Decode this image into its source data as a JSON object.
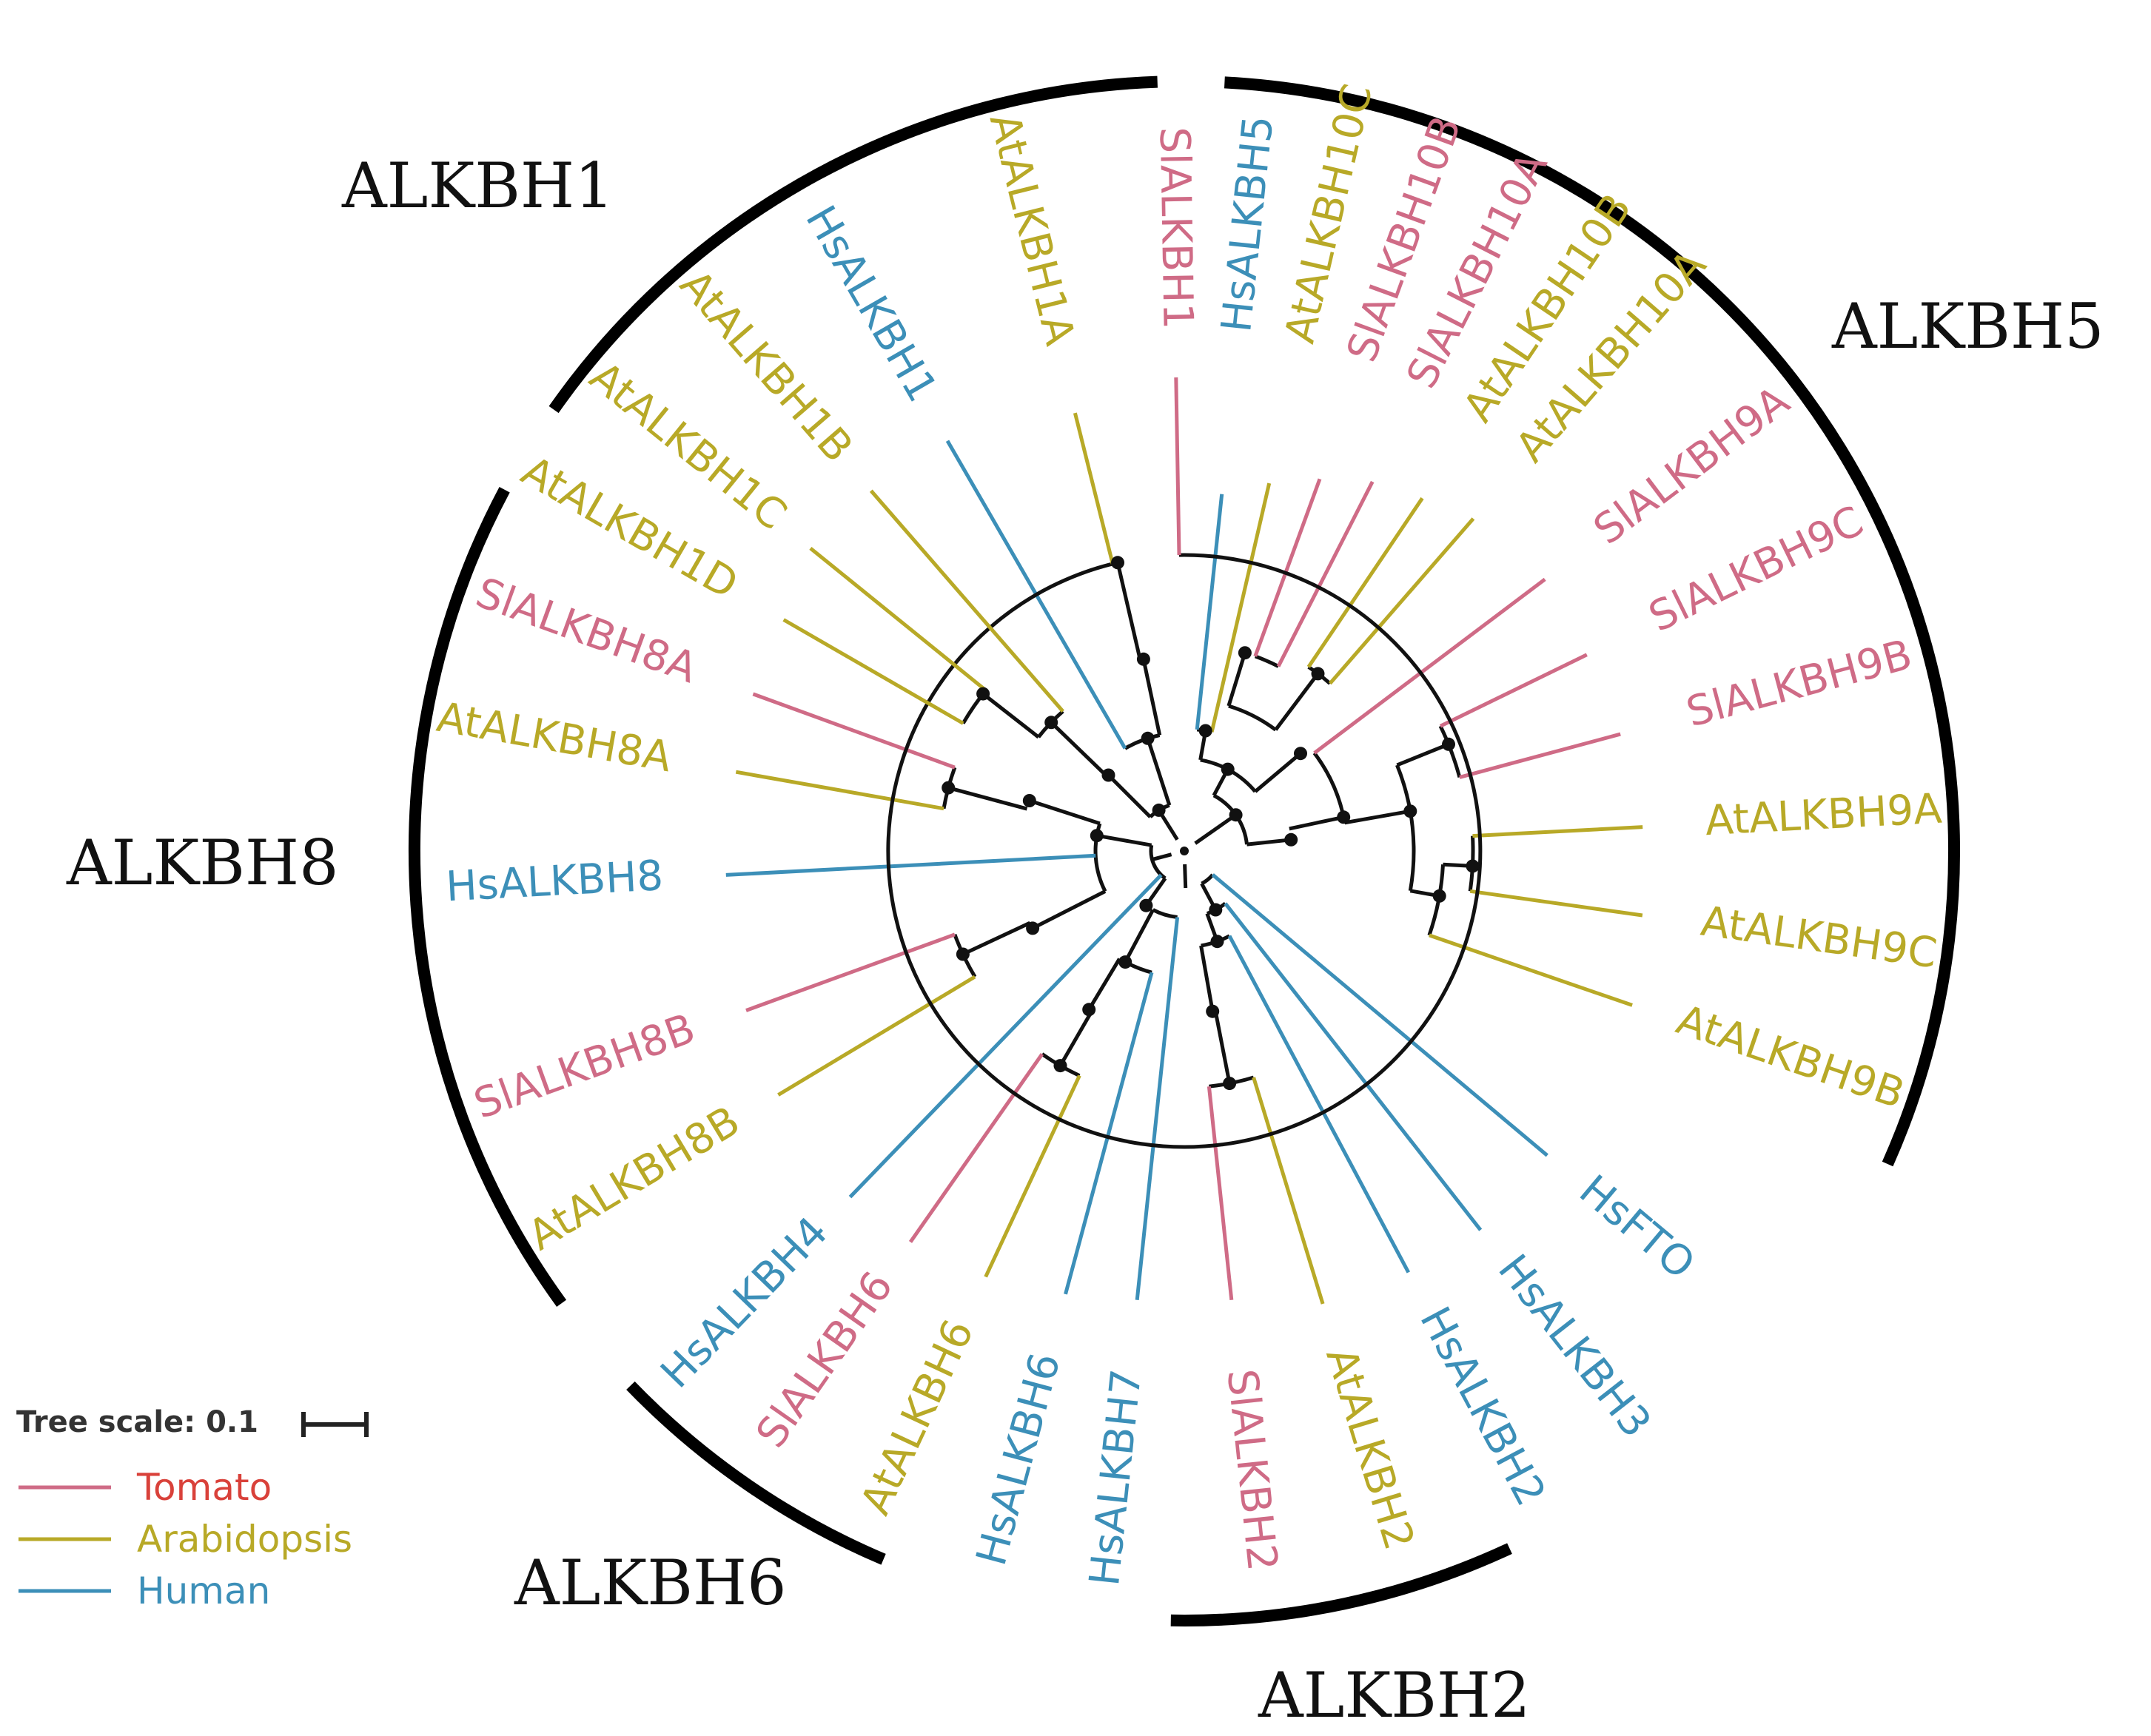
{
  "colors": {
    "Tomato": "#cf6b86",
    "Arabidopsis": "#b8a927",
    "Human": "#3c8fb8",
    "branch": "#111111",
    "arc": "#000000"
  },
  "legend_label_colors": {
    "Tomato": "#d9413a",
    "Arabidopsis": "#b8a927",
    "Human": "#3c8fb8"
  },
  "tree_scale": {
    "label": "Tree scale: 0.1"
  },
  "legend": [
    {
      "name": "Tomato",
      "group": "Tomato"
    },
    {
      "name": "Arabidopsis",
      "group": "Arabidopsis"
    },
    {
      "name": "Human",
      "group": "Human"
    }
  ],
  "clades": [
    "ALKBH1",
    "ALKBH5",
    "ALKBH8",
    "ALKBH6",
    "ALKBH2"
  ],
  "leaves": [
    {
      "label": "SlALKBH1",
      "group": "Tomato"
    },
    {
      "label": "HsALKBH5",
      "group": "Human"
    },
    {
      "label": "AtALKBH10C",
      "group": "Arabidopsis"
    },
    {
      "label": "SlALKBH10B",
      "group": "Tomato"
    },
    {
      "label": "SlALKBH10A",
      "group": "Tomato"
    },
    {
      "label": "AtALKBH10B",
      "group": "Arabidopsis"
    },
    {
      "label": "AtALKBH10A",
      "group": "Arabidopsis"
    },
    {
      "label": "SlALKBH9A",
      "group": "Tomato"
    },
    {
      "label": "SlALKBH9C",
      "group": "Tomato"
    },
    {
      "label": "SlALKBH9B",
      "group": "Tomato"
    },
    {
      "label": "AtALKBH9A",
      "group": "Arabidopsis"
    },
    {
      "label": "AtALKBH9C",
      "group": "Arabidopsis"
    },
    {
      "label": "AtALKBH9B",
      "group": "Arabidopsis"
    },
    {
      "label": "HsFTO",
      "group": "Human"
    },
    {
      "label": "HsALKBH3",
      "group": "Human"
    },
    {
      "label": "HsALKBH2",
      "group": "Human"
    },
    {
      "label": "AtALKBH2",
      "group": "Arabidopsis"
    },
    {
      "label": "SlALKBH2",
      "group": "Tomato"
    },
    {
      "label": "HsALKBH7",
      "group": "Human"
    },
    {
      "label": "HsALKBH6",
      "group": "Human"
    },
    {
      "label": "AtALKBH6",
      "group": "Arabidopsis"
    },
    {
      "label": "SlALKBH6",
      "group": "Tomato"
    },
    {
      "label": "HsALKBH4",
      "group": "Human"
    },
    {
      "label": "AtALKBH8B",
      "group": "Arabidopsis"
    },
    {
      "label": "SlALKBH8B",
      "group": "Tomato"
    },
    {
      "label": "HsALKBH8",
      "group": "Human"
    },
    {
      "label": "AtALKBH8A",
      "group": "Arabidopsis"
    },
    {
      "label": "SlALKBH8A",
      "group": "Tomato"
    },
    {
      "label": "AtALKBH1D",
      "group": "Arabidopsis"
    },
    {
      "label": "AtALKBH1C",
      "group": "Arabidopsis"
    },
    {
      "label": "AtALKBH1B",
      "group": "Arabidopsis"
    },
    {
      "label": "HsALKBH1",
      "group": "Human"
    },
    {
      "label": "AtALKBH1A",
      "group": "Arabidopsis"
    }
  ]
}
